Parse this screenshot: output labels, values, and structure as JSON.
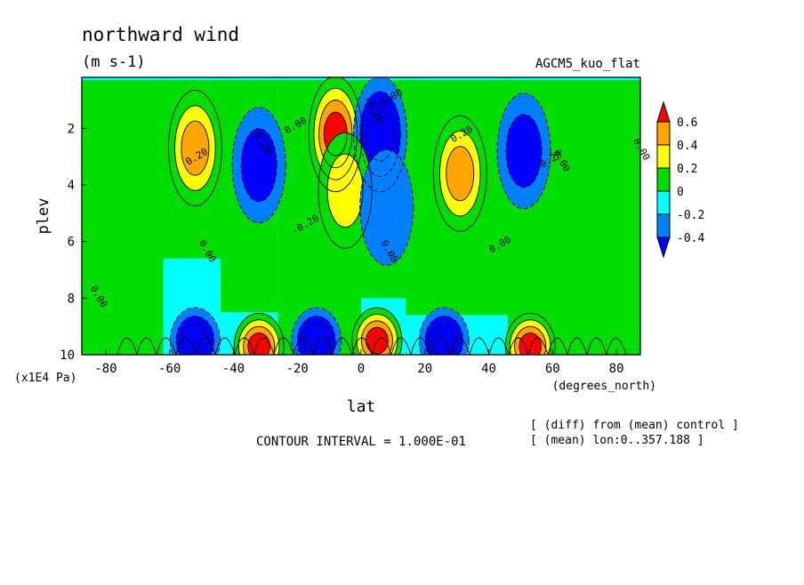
{
  "chart_data": {
    "type": "heatmap",
    "title": "northward wind",
    "units": "(m s-1)",
    "model_label": "AGCM5_kuo_flat",
    "xlabel": "lat",
    "x_units": "(degrees_north)",
    "ylabel": "plev",
    "y_units": "(x1E4 Pa)",
    "xlim": [
      -87.5,
      87.5
    ],
    "ylim": [
      10,
      0.2
    ],
    "x_ticks": [
      "-80",
      "-60",
      "-40",
      "-20",
      "0",
      "20",
      "40",
      "60",
      "80"
    ],
    "x_tick_values": [
      -80,
      -60,
      -40,
      -20,
      0,
      20,
      40,
      60,
      80
    ],
    "y_ticks": [
      "2",
      "4",
      "6",
      "8",
      "10"
    ],
    "y_tick_values": [
      2,
      4,
      6,
      8,
      10
    ],
    "contour_interval_text": "CONTOUR INTERVAL = 1.000E-01",
    "notes": [
      "[ (diff) from (mean) control ]",
      "[ (mean) lon:0..357.188 ]"
    ],
    "colorbar": {
      "labels": [
        "0.6",
        "0.4",
        "0.2",
        "0",
        "-0.2",
        "-0.4"
      ],
      "levels": [
        0.6,
        0.4,
        0.2,
        0,
        -0.2,
        -0.4
      ],
      "colors": [
        "#ff0000",
        "#ffa500",
        "#ffff00",
        "#00dd00",
        "#00ffff",
        "#0080ff",
        "#0000ff"
      ]
    },
    "contour_labels": [
      "0.00",
      "-0.20",
      "0.20",
      "0.00",
      "-0.20",
      "0.00",
      "0.20",
      "0.00",
      "0.00",
      "0.00",
      "0.20",
      "-0.20",
      "0.00",
      "0.00"
    ],
    "features": [
      {
        "lat": -52,
        "plev": 2.7,
        "value": 0.45
      },
      {
        "lat": -32,
        "plev": 3.3,
        "value": -0.4
      },
      {
        "lat": -8,
        "plev": 2.2,
        "value": 0.7
      },
      {
        "lat": 6,
        "plev": 2.2,
        "value": -0.6
      },
      {
        "lat": -5,
        "plev": 4.2,
        "value": 0.25
      },
      {
        "lat": 8,
        "plev": 4.8,
        "value": -0.25
      },
      {
        "lat": 31,
        "plev": 3.6,
        "value": 0.45
      },
      {
        "lat": 51,
        "plev": 2.8,
        "value": -0.45
      },
      {
        "lat": -32,
        "plev": 9.7,
        "value": 0.8
      },
      {
        "lat": -52,
        "plev": 9.5,
        "value": -0.6
      },
      {
        "lat": -14,
        "plev": 9.5,
        "value": -0.7
      },
      {
        "lat": 5,
        "plev": 9.5,
        "value": 0.9
      },
      {
        "lat": 26,
        "plev": 9.5,
        "value": -0.6
      },
      {
        "lat": 53,
        "plev": 9.7,
        "value": 0.8
      }
    ]
  }
}
